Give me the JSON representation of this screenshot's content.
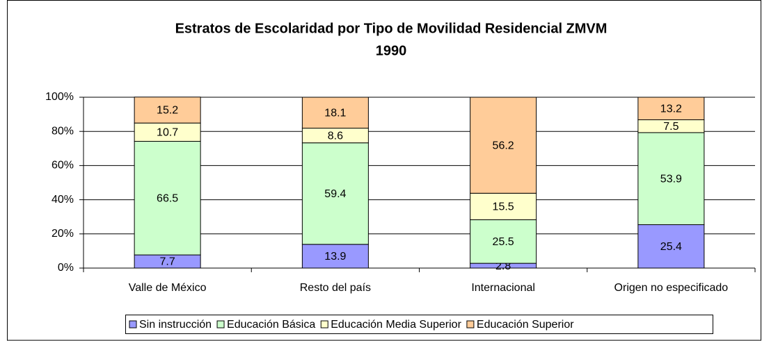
{
  "chart_data": {
    "type": "stacked_bar",
    "title_lines": [
      "Estratos de Escolaridad por Tipo de Movilidad Residencial ZMVM",
      "1990"
    ],
    "categories": [
      "Valle de México",
      "Resto del país",
      "Internacional",
      "Origen no especificado"
    ],
    "series": [
      {
        "name": "Sin instrucción",
        "color": "#9999ff",
        "values": [
          7.7,
          13.9,
          2.8,
          25.4
        ]
      },
      {
        "name": "Educación Básica",
        "color": "#ccffcc",
        "values": [
          66.5,
          59.4,
          25.5,
          53.9
        ]
      },
      {
        "name": "Educación Media Superior",
        "color": "#ffffcc",
        "values": [
          10.7,
          8.6,
          15.5,
          7.5
        ]
      },
      {
        "name": "Educación Superior",
        "color": "#ffcc99",
        "values": [
          15.2,
          18.1,
          56.2,
          13.2
        ]
      }
    ],
    "ylim": [
      0,
      100
    ],
    "yticks": [
      {
        "value": 0,
        "label": "0%"
      },
      {
        "value": 20,
        "label": "20%"
      },
      {
        "value": 40,
        "label": "40%"
      },
      {
        "value": 60,
        "label": "60%"
      },
      {
        "value": 80,
        "label": "80%"
      },
      {
        "value": 100,
        "label": "100%"
      }
    ],
    "grid": true,
    "legend": "bottom"
  }
}
